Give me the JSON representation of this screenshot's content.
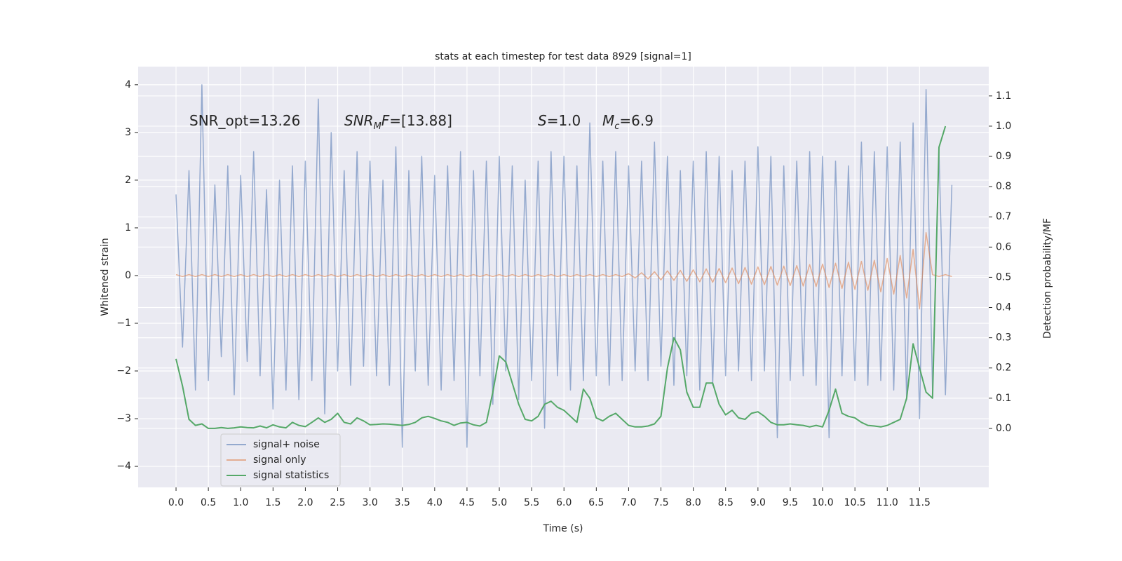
{
  "chart_data": {
    "type": "line",
    "title": "stats at each timestep for test data 8929 [signal=1]",
    "xlabel": "Time (s)",
    "ylabel": "Whitened strain",
    "y2label": "Detection probability/MF",
    "annotations": [
      [
        {
          "text": "SNR_opt=13.26"
        }
      ],
      [
        {
          "text": "SNR",
          "italic": true
        },
        {
          "text": "M",
          "italic": true,
          "sub": true
        },
        {
          "text": "F",
          "italic": true
        },
        {
          "text": "=[13.88]"
        }
      ],
      [
        {
          "text": "S",
          "italic": true
        },
        {
          "text": "=1.0"
        }
      ],
      [
        {
          "text": "M",
          "italic": true
        },
        {
          "text": "c",
          "italic": true,
          "sub": true
        },
        {
          "text": "=6.9"
        }
      ]
    ],
    "x": [
      0,
      0.1,
      0.2,
      0.3,
      0.4,
      0.5,
      0.6,
      0.7,
      0.8,
      0.9,
      1.0,
      1.1,
      1.2,
      1.3,
      1.4,
      1.5,
      1.6,
      1.7,
      1.8,
      1.9,
      2.0,
      2.1,
      2.2,
      2.3,
      2.4,
      2.5,
      2.6,
      2.7,
      2.8,
      2.9,
      3.0,
      3.1,
      3.2,
      3.3,
      3.4,
      3.5,
      3.6,
      3.7,
      3.8,
      3.9,
      4.0,
      4.1,
      4.2,
      4.3,
      4.4,
      4.5,
      4.6,
      4.7,
      4.8,
      4.9,
      5.0,
      5.1,
      5.2,
      5.3,
      5.4,
      5.5,
      5.6,
      5.7,
      5.8,
      5.9,
      6.0,
      6.1,
      6.2,
      6.3,
      6.4,
      6.5,
      6.6,
      6.7,
      6.8,
      6.9,
      7.0,
      7.1,
      7.2,
      7.3,
      7.4,
      7.5,
      7.6,
      7.7,
      7.8,
      7.9,
      8.0,
      8.1,
      8.2,
      8.3,
      8.4,
      8.5,
      8.6,
      8.7,
      8.8,
      8.9,
      9.0,
      9.1,
      9.2,
      9.3,
      9.4,
      9.5,
      9.6,
      9.7,
      9.8,
      9.9,
      10.0,
      10.1,
      10.2,
      10.3,
      10.4,
      10.5,
      10.6,
      10.7,
      10.8,
      10.9,
      11.0,
      11.1,
      11.2,
      11.3,
      11.4,
      11.5,
      11.6,
      11.7,
      11.8,
      11.9,
      12.0
    ],
    "series": [
      {
        "name": "signal+ noise",
        "color": "#4c72b0",
        "opacity": 0.55,
        "values": [
          1.7,
          -1.5,
          2.2,
          -2.4,
          4.0,
          -2.2,
          1.9,
          -1.7,
          2.3,
          -2.5,
          2.1,
          -1.8,
          2.6,
          -2.1,
          1.8,
          -2.8,
          2.0,
          -2.4,
          2.3,
          -2.6,
          2.4,
          -2.2,
          3.7,
          -2.9,
          3.0,
          -2.0,
          2.2,
          -2.3,
          2.6,
          -1.9,
          2.4,
          -2.1,
          2.0,
          -2.3,
          2.7,
          -3.6,
          2.2,
          -2.0,
          2.5,
          -2.3,
          2.1,
          -2.4,
          2.3,
          -2.2,
          2.6,
          -3.6,
          2.2,
          -2.1,
          2.4,
          -2.7,
          2.5,
          -2.0,
          2.3,
          -2.6,
          2.0,
          -2.2,
          2.4,
          -3.2,
          2.6,
          -2.1,
          2.5,
          -2.4,
          2.3,
          -2.2,
          3.2,
          -2.1,
          2.4,
          -2.3,
          2.6,
          -2.2,
          2.3,
          -2.0,
          2.4,
          -2.2,
          2.8,
          -1.9,
          2.5,
          -2.3,
          2.2,
          -2.1,
          2.4,
          -2.4,
          2.6,
          -2.3,
          2.5,
          -2.1,
          2.2,
          -2.0,
          2.4,
          -2.2,
          2.7,
          -2.0,
          2.5,
          -3.4,
          2.3,
          -2.2,
          2.4,
          -2.1,
          2.6,
          -2.3,
          2.5,
          -3.4,
          2.4,
          -2.1,
          2.3,
          -2.2,
          2.8,
          -2.3,
          2.6,
          -2.2,
          2.7,
          -2.4,
          2.8,
          -2.6,
          3.2,
          -3.0,
          3.9,
          -2.4,
          2.6,
          -2.5,
          1.9
        ]
      },
      {
        "name": "signal only",
        "color": "#dd8452",
        "opacity": 0.6,
        "values": [
          0.02,
          -0.02,
          0.02,
          -0.02,
          0.02,
          -0.02,
          0.02,
          -0.02,
          0.02,
          -0.02,
          0.02,
          -0.02,
          0.02,
          -0.02,
          0.02,
          -0.02,
          0.02,
          -0.02,
          0.02,
          -0.02,
          0.02,
          -0.02,
          0.02,
          -0.02,
          0.02,
          -0.02,
          0.02,
          -0.02,
          0.02,
          -0.02,
          0.02,
          -0.02,
          0.02,
          -0.02,
          0.02,
          -0.02,
          0.02,
          -0.02,
          0.02,
          -0.02,
          0.02,
          -0.02,
          0.02,
          -0.02,
          0.02,
          -0.02,
          0.02,
          -0.02,
          0.02,
          -0.02,
          0.02,
          -0.02,
          0.02,
          -0.02,
          0.02,
          -0.02,
          0.02,
          -0.02,
          0.02,
          -0.02,
          0.02,
          -0.02,
          0.02,
          -0.02,
          0.02,
          -0.02,
          0.02,
          -0.02,
          0.02,
          -0.02,
          0.04,
          -0.05,
          0.06,
          -0.07,
          0.08,
          -0.09,
          0.1,
          -0.1,
          0.11,
          -0.12,
          0.12,
          -0.13,
          0.14,
          -0.14,
          0.15,
          -0.15,
          0.16,
          -0.17,
          0.17,
          -0.18,
          0.18,
          -0.19,
          0.19,
          -0.2,
          0.2,
          -0.21,
          0.21,
          -0.22,
          0.23,
          -0.23,
          0.24,
          -0.25,
          0.26,
          -0.27,
          0.28,
          -0.29,
          0.3,
          -0.31,
          0.32,
          -0.34,
          0.36,
          -0.39,
          0.42,
          -0.47,
          0.55,
          -0.7,
          0.9,
          0.02,
          -0.02,
          0.02,
          -0.02
        ]
      },
      {
        "name": "signal statistics",
        "color": "#55a868",
        "opacity": 1,
        "axis": "y2",
        "values": [
          0.23,
          0.14,
          0.03,
          0.01,
          0.015,
          0.0,
          0.0,
          0.003,
          0.0,
          0.002,
          0.005,
          0.003,
          0.002,
          0.008,
          0.002,
          0.012,
          0.005,
          0.002,
          0.02,
          0.01,
          0.006,
          0.02,
          0.035,
          0.02,
          0.03,
          0.05,
          0.02,
          0.015,
          0.035,
          0.025,
          0.012,
          0.013,
          0.015,
          0.014,
          0.012,
          0.01,
          0.013,
          0.02,
          0.035,
          0.04,
          0.033,
          0.025,
          0.02,
          0.01,
          0.018,
          0.02,
          0.012,
          0.008,
          0.02,
          0.12,
          0.24,
          0.22,
          0.15,
          0.08,
          0.03,
          0.025,
          0.04,
          0.08,
          0.09,
          0.07,
          0.06,
          0.04,
          0.02,
          0.13,
          0.1,
          0.035,
          0.025,
          0.04,
          0.05,
          0.03,
          0.01,
          0.005,
          0.005,
          0.008,
          0.015,
          0.04,
          0.2,
          0.3,
          0.26,
          0.12,
          0.07,
          0.07,
          0.15,
          0.15,
          0.08,
          0.045,
          0.06,
          0.035,
          0.03,
          0.05,
          0.055,
          0.04,
          0.02,
          0.012,
          0.012,
          0.015,
          0.012,
          0.01,
          0.005,
          0.01,
          0.005,
          0.06,
          0.13,
          0.05,
          0.04,
          0.035,
          0.02,
          0.01,
          0.008,
          0.005,
          0.01,
          0.02,
          0.03,
          0.1,
          0.28,
          0.2,
          0.12,
          0.1,
          0.93,
          1.0,
          null
        ]
      }
    ],
    "xlim": [
      -0.586,
      12.57
    ],
    "xticks": [
      {
        "value": 0,
        "label": "0.0"
      },
      0.5,
      {
        "value": 1,
        "label": "1.0"
      },
      1.5,
      {
        "value": 2,
        "label": "2.0"
      },
      2.5,
      {
        "value": 3,
        "label": "3.0"
      },
      3.5,
      {
        "value": 4,
        "label": "4.0"
      },
      4.5,
      {
        "value": 5,
        "label": "5.0"
      },
      5.5,
      {
        "value": 6,
        "label": "6.0"
      },
      6.5,
      {
        "value": 7,
        "label": "7.0"
      },
      7.5,
      {
        "value": 8,
        "label": "8.0"
      },
      8.5,
      {
        "value": 9,
        "label": "9.0"
      },
      9.5,
      {
        "value": 10,
        "label": "10.0"
      },
      10.5,
      {
        "value": 11,
        "label": "11.0"
      },
      11.5
    ],
    "ylim": [
      -4.44,
      4.38
    ],
    "yticks": [
      {
        "value": -4,
        "label": "−4"
      },
      {
        "value": -3,
        "label": "−3"
      },
      {
        "value": -2,
        "label": "−2"
      },
      {
        "value": -1,
        "label": "−1"
      },
      0,
      1,
      2,
      3,
      4
    ],
    "y2lim": [
      -0.195,
      1.197
    ],
    "y2ticks": [
      {
        "value": 0,
        "label": "0.0"
      },
      0.1,
      0.2,
      0.3,
      0.4,
      0.5,
      0.6,
      0.7,
      0.8,
      0.9,
      {
        "value": 1,
        "label": "1.0"
      },
      1.1
    ],
    "grid": true,
    "legend": "lower left"
  }
}
